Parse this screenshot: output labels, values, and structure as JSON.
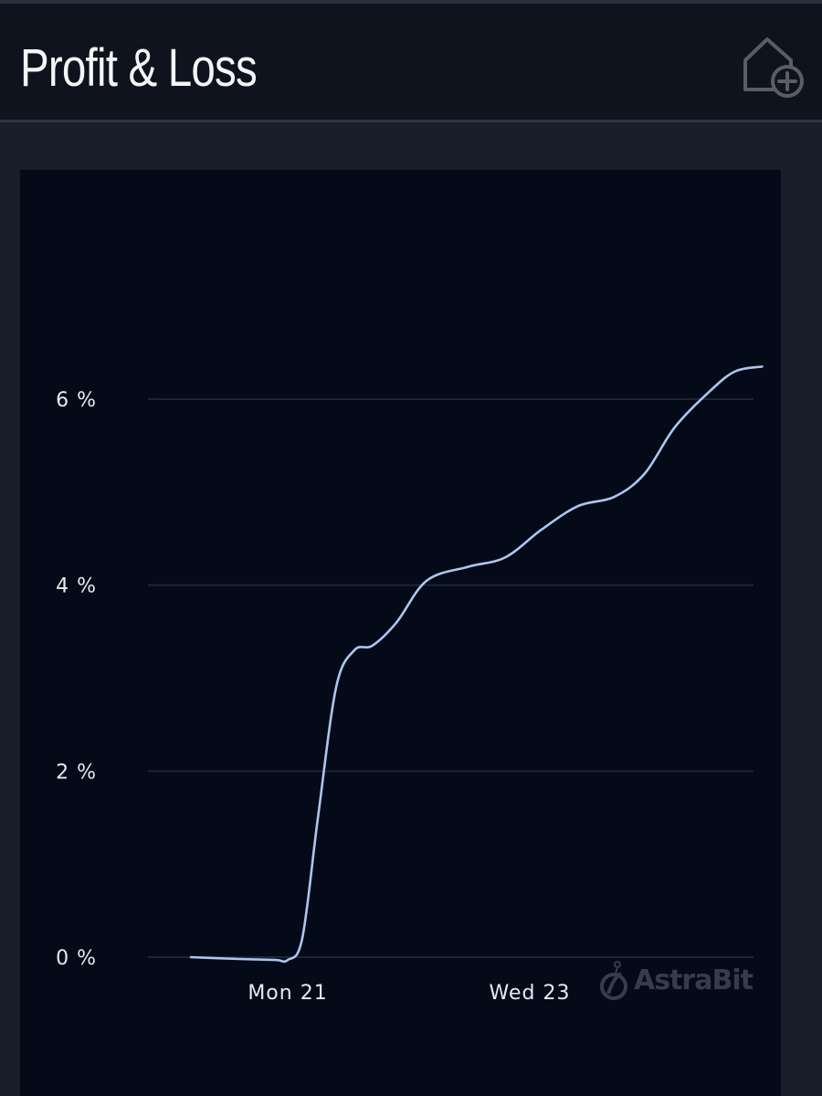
{
  "header": {
    "title": "Profit & Loss",
    "action_icon": "home-add-icon"
  },
  "watermark": {
    "text": "AstraBit",
    "icon": "astrabit-logo-icon"
  },
  "colors": {
    "header_bg": "#0f131e",
    "page_bg": "#181d29",
    "chart_bg": "#050a18",
    "line": "#a8c8f0",
    "grid": "#1f2535"
  },
  "chart_data": {
    "type": "line",
    "title": "",
    "xlabel": "",
    "ylabel": "",
    "y_tick_labels": [
      "0 %",
      "2 %",
      "4 %",
      "6 %"
    ],
    "y_ticks": [
      0,
      2,
      4,
      6
    ],
    "x_tick_labels": [
      "Mon 21",
      "Wed 23"
    ],
    "x_ticks": [
      21,
      23
    ],
    "ylim": [
      0,
      6.35
    ],
    "grid": true,
    "series": [
      {
        "x": [
          20.2,
          20.6,
          20.9,
          21.0,
          21.12,
          21.25,
          21.4,
          21.55,
          21.7,
          21.9,
          22.15,
          22.5,
          22.8,
          23.1,
          23.4,
          23.7,
          23.95,
          24.2,
          24.5,
          24.7,
          24.92
        ],
        "y": [
          0.0,
          -0.02,
          -0.03,
          -0.03,
          0.2,
          1.5,
          2.9,
          3.3,
          3.35,
          3.6,
          4.05,
          4.2,
          4.3,
          4.6,
          4.85,
          4.95,
          5.2,
          5.7,
          6.1,
          6.3,
          6.35
        ]
      }
    ]
  }
}
